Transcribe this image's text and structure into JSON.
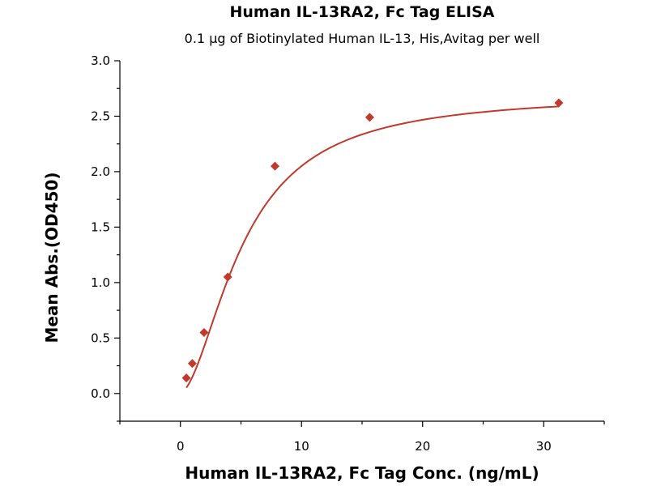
{
  "chart_data": {
    "type": "scatter",
    "title": "Human IL-13RA2, Fc Tag ELISA",
    "subtitle": "0.1 μg of Biotinylated Human IL-13, His,Avitag per well",
    "xlabel": "Human IL-13RA2, Fc Tag Conc. (ng/mL)",
    "ylabel": "Mean Abs.(OD450)",
    "xlim": [
      -5,
      35
    ],
    "ylim": [
      -0.25,
      3.0
    ],
    "x_ticks": [
      0,
      10,
      20,
      30
    ],
    "y_ticks": [
      0.0,
      0.5,
      1.0,
      1.5,
      2.0,
      2.5,
      3.0
    ],
    "x_tick_labels": [
      "0",
      "10",
      "20",
      "30"
    ],
    "y_tick_labels": [
      "0.0",
      "0.5",
      "1.0",
      "1.5",
      "2.0",
      "2.5",
      "3.0"
    ],
    "grid": false,
    "series": [
      {
        "marker": "diamond",
        "color": "#c0392b",
        "x": [
          0.49,
          0.98,
          1.95,
          3.91,
          7.81,
          15.63,
          31.25
        ],
        "y": [
          0.14,
          0.27,
          0.55,
          1.05,
          2.05,
          2.49,
          2.62
        ]
      }
    ],
    "fit_curve": {
      "color": "#c0392b",
      "model": "4PL",
      "bottom": 0.01,
      "top": 2.7,
      "ec50": 5.2,
      "hill": 1.75
    }
  }
}
